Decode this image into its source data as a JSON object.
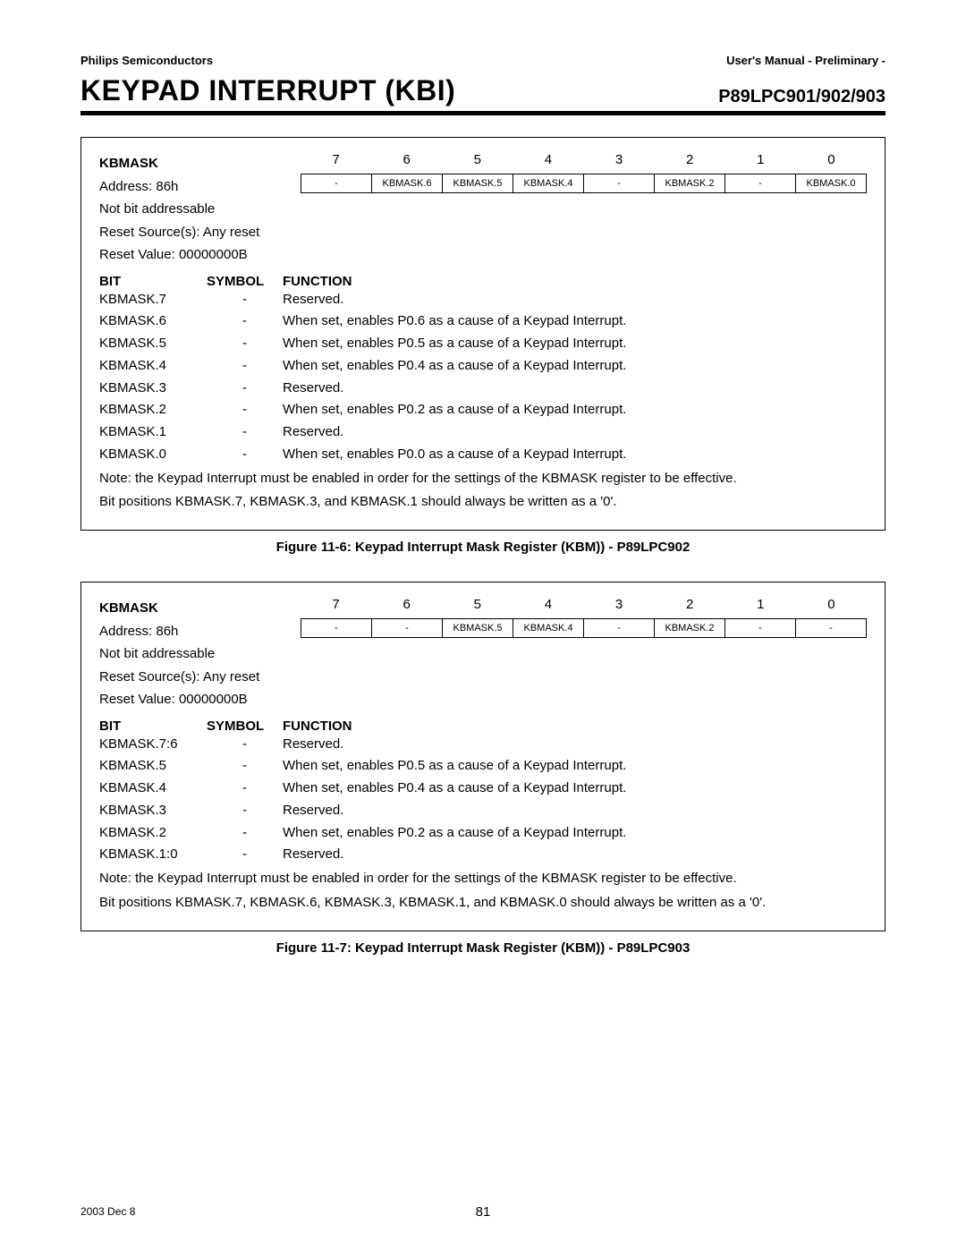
{
  "header": {
    "left": "Philips Semiconductors",
    "right": "User's Manual - Preliminary -"
  },
  "title": {
    "main": "KEYPAD INTERRUPT (KBI)",
    "part": "P89LPC901/902/903"
  },
  "figures": [
    {
      "register_name": "KBMASK",
      "address": "Address: 86h",
      "bit_addressable": "Not bit addressable",
      "reset_sources": "Reset Source(s): Any reset",
      "reset_value": "Reset Value: 00000000B",
      "bit_numbers": [
        "7",
        "6",
        "5",
        "4",
        "3",
        "2",
        "1",
        "0"
      ],
      "bit_cells": [
        "-",
        "KBMASK.6",
        "KBMASK.5",
        "KBMASK.4",
        "-",
        "KBMASK.2",
        "-",
        "KBMASK.0"
      ],
      "func_header": {
        "c1": "BIT",
        "c2": "SYMBOL",
        "c3": "FUNCTION"
      },
      "rows": [
        {
          "bit": "KBMASK.7",
          "sym": "-",
          "fn": "Reserved."
        },
        {
          "bit": "KBMASK.6",
          "sym": "-",
          "fn": "When set, enables P0.6 as a cause of a Keypad Interrupt."
        },
        {
          "bit": "KBMASK.5",
          "sym": "-",
          "fn": "When set, enables P0.5 as a cause of a Keypad Interrupt."
        },
        {
          "bit": "KBMASK.4",
          "sym": "-",
          "fn": "When set, enables P0.4 as a cause of a Keypad Interrupt."
        },
        {
          "bit": "KBMASK.3",
          "sym": "-",
          "fn": "Reserved."
        },
        {
          "bit": "KBMASK.2",
          "sym": "-",
          "fn": "When set, enables P0.2 as a cause of a Keypad Interrupt."
        },
        {
          "bit": "KBMASK.1",
          "sym": "-",
          "fn": "Reserved."
        },
        {
          "bit": "KBMASK.0",
          "sym": "-",
          "fn": "When set, enables P0.0 as a cause of a Keypad Interrupt."
        }
      ],
      "notes": [
        "Note: the Keypad Interrupt must be enabled in order for the settings of the KBMASK register to be effective.",
        "Bit positions KBMASK.7, KBMASK.3, and KBMASK.1 should always be written as a '0'."
      ],
      "caption": "Figure 11-6: Keypad Interrupt Mask Register (KBM)) - P89LPC902"
    },
    {
      "register_name": "KBMASK",
      "address": "Address: 86h",
      "bit_addressable": "Not bit addressable",
      "reset_sources": "Reset Source(s): Any reset",
      "reset_value": "Reset Value: 00000000B",
      "bit_numbers": [
        "7",
        "6",
        "5",
        "4",
        "3",
        "2",
        "1",
        "0"
      ],
      "bit_cells": [
        "-",
        "-",
        "KBMASK.5",
        "KBMASK.4",
        "-",
        "KBMASK.2",
        "-",
        "-"
      ],
      "func_header": {
        "c1": "BIT",
        "c2": "SYMBOL",
        "c3": "FUNCTION"
      },
      "rows": [
        {
          "bit": "KBMASK.7:6",
          "sym": "-",
          "fn": "Reserved."
        },
        {
          "bit": "KBMASK.5",
          "sym": "-",
          "fn": "When set, enables P0.5 as a cause of a Keypad Interrupt."
        },
        {
          "bit": "KBMASK.4",
          "sym": "-",
          "fn": "When set, enables P0.4 as a cause of a Keypad Interrupt."
        },
        {
          "bit": "KBMASK.3",
          "sym": "-",
          "fn": "Reserved."
        },
        {
          "bit": "KBMASK.2",
          "sym": "-",
          "fn": "When set, enables P0.2 as a cause of a Keypad Interrupt."
        },
        {
          "bit": "KBMASK.1:0",
          "sym": "-",
          "fn": "Reserved."
        }
      ],
      "notes": [
        "Note: the Keypad Interrupt must be enabled in order for the settings of the KBMASK register to be effective.",
        "Bit positions KBMASK.7, KBMASK.6, KBMASK.3, KBMASK.1, and KBMASK.0 should always be written as a '0'."
      ],
      "caption": "Figure 11-7: Keypad Interrupt Mask Register (KBM)) - P89LPC903"
    }
  ],
  "footer": {
    "date": "2003 Dec 8",
    "page": "81"
  }
}
